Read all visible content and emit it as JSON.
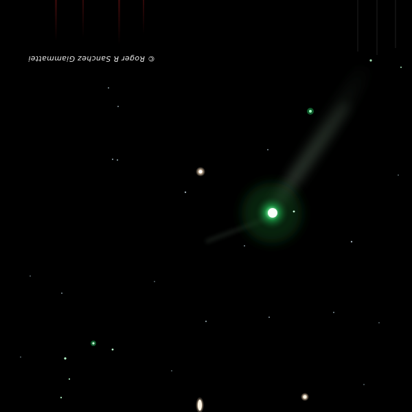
{
  "image": {
    "subject": "comet-with-green-coma-and-faint-tail",
    "background_color": "#000000",
    "coma_color": "#36f07a",
    "tail_color": "#6f8a72",
    "star_color": "#ffffff"
  },
  "credit": {
    "text": "© Roger R Sanchez Giammattei",
    "orientation": "upside-down"
  }
}
